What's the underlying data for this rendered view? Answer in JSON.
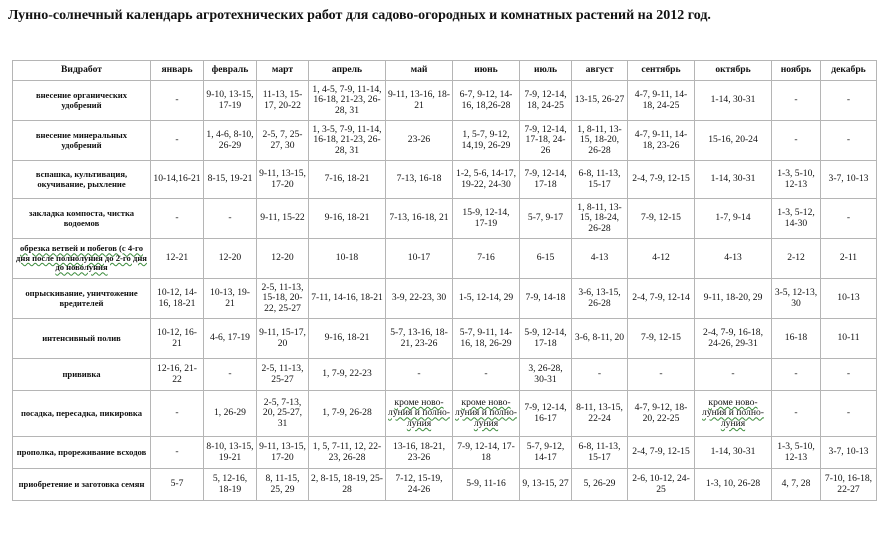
{
  "title": "Лунно-солнечный календарь агротехнических работ для садово-огородных и комнатных растений на 2012 год.",
  "table": {
    "headers": [
      "Видработ",
      "январь",
      "февраль",
      "март",
      "апрель",
      "май",
      "июнь",
      "июль",
      "август",
      "сентябрь",
      "октябрь",
      "ноябрь",
      "декабрь"
    ],
    "rows": [
      {
        "work": "внесение органических удобрений",
        "cells": [
          "-",
          "9-10, 13-15, 17-19",
          "11-13, 15-17, 20-22",
          "1, 4-5, 7-9, 11-14, 16-18, 21-23, 26-28, 31",
          "9-11, 13-16, 18-21",
          "6-7, 9-12, 14-16, 18,26-28",
          "7-9, 12-14, 18, 24-25",
          "13-15, 26-27",
          "4-7, 9-11, 14-18, 24-25",
          "1-14, 30-31",
          "-",
          "-"
        ]
      },
      {
        "work": "внесение минеральных удобрений",
        "cells": [
          "-",
          "1, 4-6, 8-10, 26-29",
          "2-5, 7, 25-27, 30",
          "1, 3-5, 7-9, 11-14, 16-18, 21-23, 26-28, 31",
          "23-26",
          "1, 5-7, 9-12, 14,19, 26-29",
          "7-9, 12-14, 17-18, 24-26",
          "1, 8-11, 13-15, 18-20, 26-28",
          "4-7, 9-11, 14-18, 23-26",
          "15-16, 20-24",
          "-",
          "-"
        ]
      },
      {
        "work": "вспашка, культивация, окучивание, рыхление",
        "cells": [
          "10-14,16-21",
          "8-15, 19-21",
          "9-11, 13-15, 17-20",
          "7-16, 18-21",
          "7-13, 16-18",
          "1-2, 5-6, 14-17, 19-22, 24-30",
          "7-9, 12-14, 17-18",
          "6-8, 11-13, 15-17",
          "2-4, 7-9, 12-15",
          "1-14, 30-31",
          "1-3, 5-10, 12-13",
          "3-7, 10-13"
        ]
      },
      {
        "work": "закладка компоста, чистка водоемов",
        "cells": [
          "-",
          "-",
          "9-11, 15-22",
          "9-16, 18-21",
          "7-13, 16-18, 21",
          "15-9, 12-14, 17-19",
          "5-7, 9-17",
          "1, 8-11, 13-15, 18-24, 26-28",
          "7-9, 12-15",
          "1-7, 9-14",
          "1-3, 5-12, 14-30",
          "-"
        ]
      },
      {
        "work": "обрезка ветвей и побегов (с 4-го дня после полнолуния до 2-го дня до новолуния",
        "wavy": true,
        "cells": [
          "12-21",
          "12-20",
          "12-20",
          "10-18",
          "10-17",
          "7-16",
          "6-15",
          "4-13",
          "4-12",
          "4-13",
          "2-12",
          "2-11"
        ]
      },
      {
        "work": "опрыскивание, уничтожение вредителей",
        "cells": [
          "10-12, 14-16, 18-21",
          "10-13, 19-21",
          "2-5, 11-13, 15-18, 20-22, 25-27",
          "7-11, 14-16, 18-21",
          "3-9, 22-23, 30",
          "1-5, 12-14, 29",
          "7-9, 14-18",
          "3-6, 13-15, 26-28",
          "2-4, 7-9, 12-14",
          "9-11, 18-20, 29",
          "3-5, 12-13, 30",
          "10-13"
        ]
      },
      {
        "work": "интенсивный полив",
        "cells": [
          "10-12, 16-21",
          "4-6, 17-19",
          "9-11, 15-17, 20",
          "9-16, 18-21",
          "5-7, 13-16, 18-21, 23-26",
          "5-7, 9-11, 14-16, 18, 26-29",
          "5-9, 12-14, 17-18",
          "3-6, 8-11, 20",
          "7-9, 12-15",
          "2-4, 7-9, 16-18, 24-26, 29-31",
          "16-18",
          "10-11"
        ]
      },
      {
        "work": "прививка",
        "cells": [
          "12-16, 21-22",
          "-",
          "2-5, 11-13, 25-27",
          "1, 7-9, 22-23",
          "-",
          "-",
          "3, 26-28, 30-31",
          "-",
          "-",
          "-",
          "-",
          "-"
        ]
      },
      {
        "work": "посадка, пересадка, пикировка",
        "cells": [
          "-",
          "1, 26-29",
          "2-5, 7-13, 20, 25-27, 31",
          "1, 7-9, 26-28",
          "кроме ново-луния и полно-луния",
          "кроме ново-луния и полно-луния",
          "7-9, 12-14, 16-17",
          "8-11, 13-15, 22-24",
          "4-7, 9-12, 18-20, 22-25",
          "кроме ново-луния и полно- луния",
          "-",
          "-"
        ]
      },
      {
        "work": "прополка, прореживание всходов",
        "cells": [
          "-",
          "8-10, 13-15, 19-21",
          "9-11, 13-15, 17-20",
          "1, 5, 7-11, 12, 22-23, 26-28",
          "13-16, 18-21, 23-26",
          "7-9, 12-14, 17-18",
          "5-7, 9-12, 14-17",
          "6-8, 11-13, 15-17",
          "2-4, 7-9, 12-15",
          "1-14, 30-31",
          "1-3, 5-10, 12-13",
          "3-7, 10-13"
        ]
      },
      {
        "work": "приобретение и заготовка семян",
        "cells": [
          "5-7",
          "5, 12-16, 18-19",
          "8, 11-15, 25, 29",
          "2, 8-15, 18-19, 25-28",
          "7-12, 15-19, 24-26",
          "5-9, 11-16",
          "9, 13-15, 27",
          "5, 26-29",
          "2-6, 10-12, 24-25",
          "1-3, 10, 26-28",
          "4, 7, 28",
          "7-10, 16-18, 22-27"
        ]
      }
    ]
  }
}
